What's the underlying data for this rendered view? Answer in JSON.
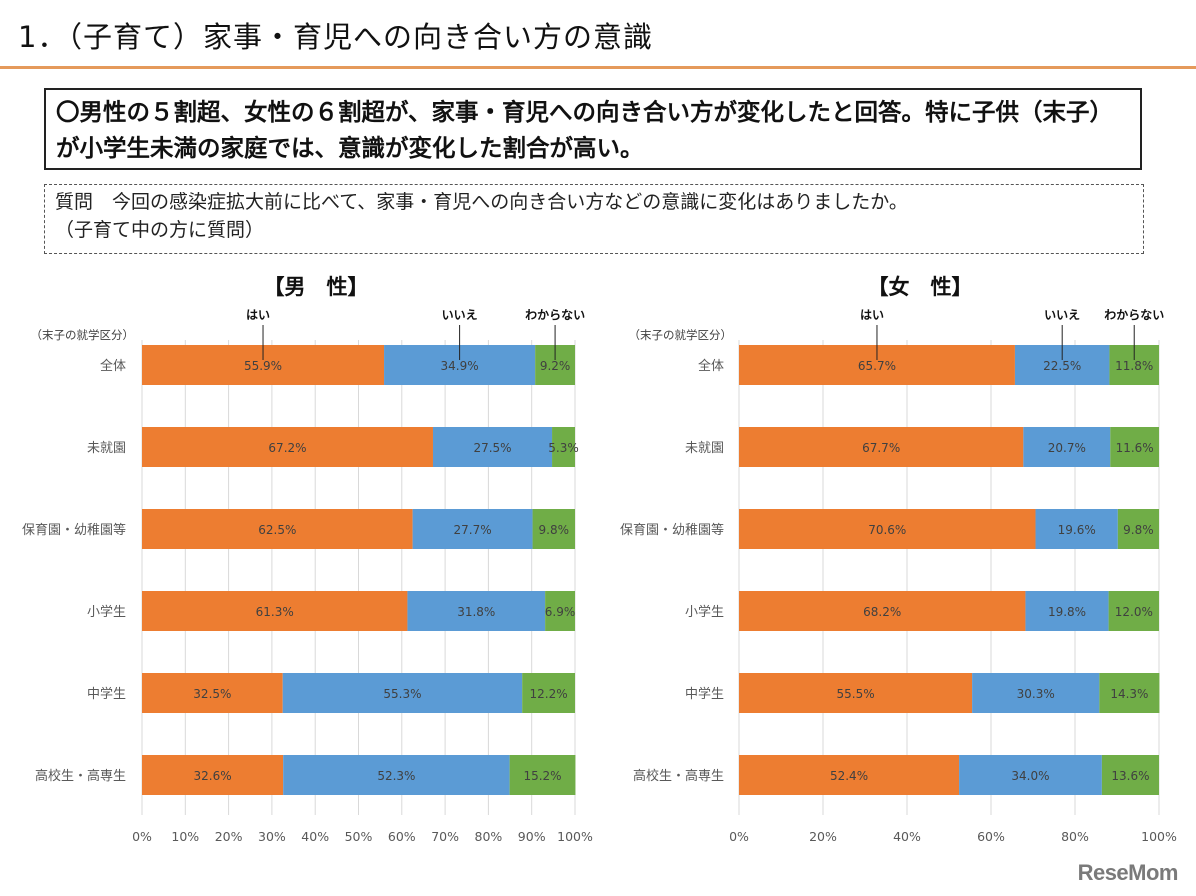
{
  "page": {
    "title": "1．（子育て）家事・育児への向き合い方の意識",
    "summary": "〇男性の５割超、女性の６割超が、家事・育児への向き合い方が変化したと回答。特に子供（末子）が小学生未満の家庭では、意識が変化した割合が高い。",
    "question_line1": "質問　今回の感染症拡大前に比べて、家事・育児への向き合い方などの意識に変化はありましたか。",
    "question_line2": "（子育て中の方に質問）",
    "watermark": "ReseMom"
  },
  "colors": {
    "yes": "#ed7d31",
    "no": "#5b9bd5",
    "unknown": "#70ad47",
    "accent_rule": "#e59a5b",
    "grid": "#d9d9d9"
  },
  "chart_data": [
    {
      "type": "bar",
      "orientation": "horizontal-stacked-100",
      "title": "【男　性】",
      "category_header": "（末子の就学区分）",
      "categories": [
        "全体",
        "未就園",
        "保育園・幼稚園等",
        "小学生",
        "中学生",
        "高校生・高専生"
      ],
      "series": [
        {
          "name": "はい",
          "key": "yes",
          "values": [
            55.9,
            67.2,
            62.5,
            61.3,
            32.5,
            32.6
          ]
        },
        {
          "name": "いいえ",
          "key": "no",
          "values": [
            34.9,
            27.5,
            27.7,
            31.8,
            55.3,
            52.3
          ]
        },
        {
          "name": "わからない",
          "key": "unknown",
          "values": [
            9.2,
            5.3,
            9.8,
            6.9,
            12.2,
            15.2
          ]
        }
      ],
      "xlim": [
        0,
        100
      ],
      "xticks": [
        "0%",
        "10%",
        "20%",
        "30%",
        "40%",
        "50%",
        "60%",
        "70%",
        "80%",
        "90%",
        "100%"
      ],
      "grid": true,
      "legend": "callouts-above-first-bar"
    },
    {
      "type": "bar",
      "orientation": "horizontal-stacked-100",
      "title": "【女　性】",
      "category_header": "（末子の就学区分）",
      "categories": [
        "全体",
        "未就園",
        "保育園・幼稚園等",
        "小学生",
        "中学生",
        "高校生・高専生"
      ],
      "series": [
        {
          "name": "はい",
          "key": "yes",
          "values": [
            65.7,
            67.7,
            70.6,
            68.2,
            55.5,
            52.4
          ]
        },
        {
          "name": "いいえ",
          "key": "no",
          "values": [
            22.5,
            20.7,
            19.6,
            19.8,
            30.3,
            34.0
          ]
        },
        {
          "name": "わからない",
          "key": "unknown",
          "values": [
            11.8,
            11.6,
            9.8,
            12.0,
            14.3,
            13.6
          ]
        }
      ],
      "xlim": [
        0,
        100
      ],
      "xticks": [
        "0%",
        "20%",
        "40%",
        "60%",
        "80%",
        "100%"
      ],
      "grid": true,
      "legend": "callouts-above-first-bar"
    }
  ]
}
